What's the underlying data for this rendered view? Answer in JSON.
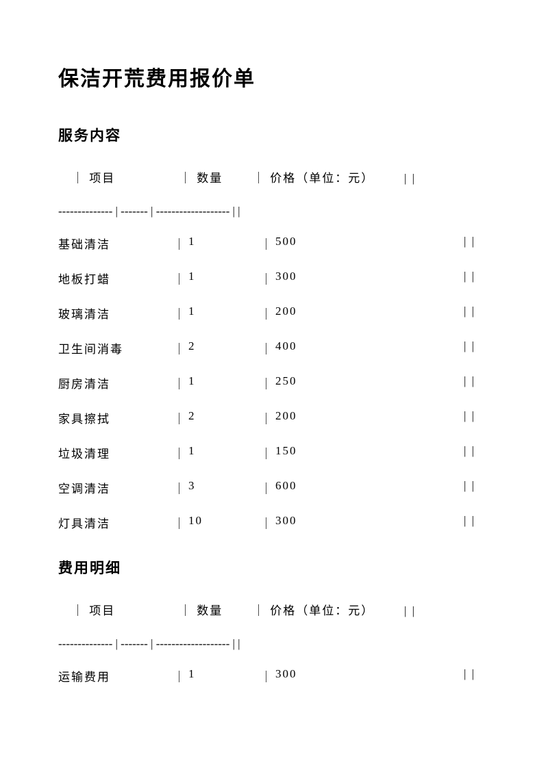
{
  "title": "保洁开荒费用报价单",
  "section1": {
    "heading": "服务内容",
    "header_line": "｜ 项目               ｜ 数量       ｜ 价格（单位：元）       | |",
    "divider_line": "-------------- | ------- | ------------------- | |",
    "rows": [
      {
        "item": "基础清洁",
        "qty": "1",
        "price": "500"
      },
      {
        "item": "地板打蜡",
        "qty": "1",
        "price": "300"
      },
      {
        "item": "玻璃清洁",
        "qty": "1",
        "price": "200"
      },
      {
        "item": "卫生间消毒",
        "qty": "2",
        "price": "400"
      },
      {
        "item": "厨房清洁",
        "qty": "1",
        "price": "250"
      },
      {
        "item": "家具擦拭",
        "qty": "2",
        "price": "200"
      },
      {
        "item": "垃圾清理",
        "qty": "1",
        "price": "150"
      },
      {
        "item": "空调清洁",
        "qty": "3",
        "price": "600"
      },
      {
        "item": "灯具清洁",
        "qty": "10",
        "price": "300"
      }
    ]
  },
  "section2": {
    "heading": "费用明细",
    "header_line": "｜ 项目               ｜ 数量       ｜ 价格（单位：元）       | |",
    "divider_line": "-------------- | ------- | ------------------- | |",
    "rows": [
      {
        "item": "运输费用",
        "qty": "1",
        "price": "300"
      }
    ]
  }
}
